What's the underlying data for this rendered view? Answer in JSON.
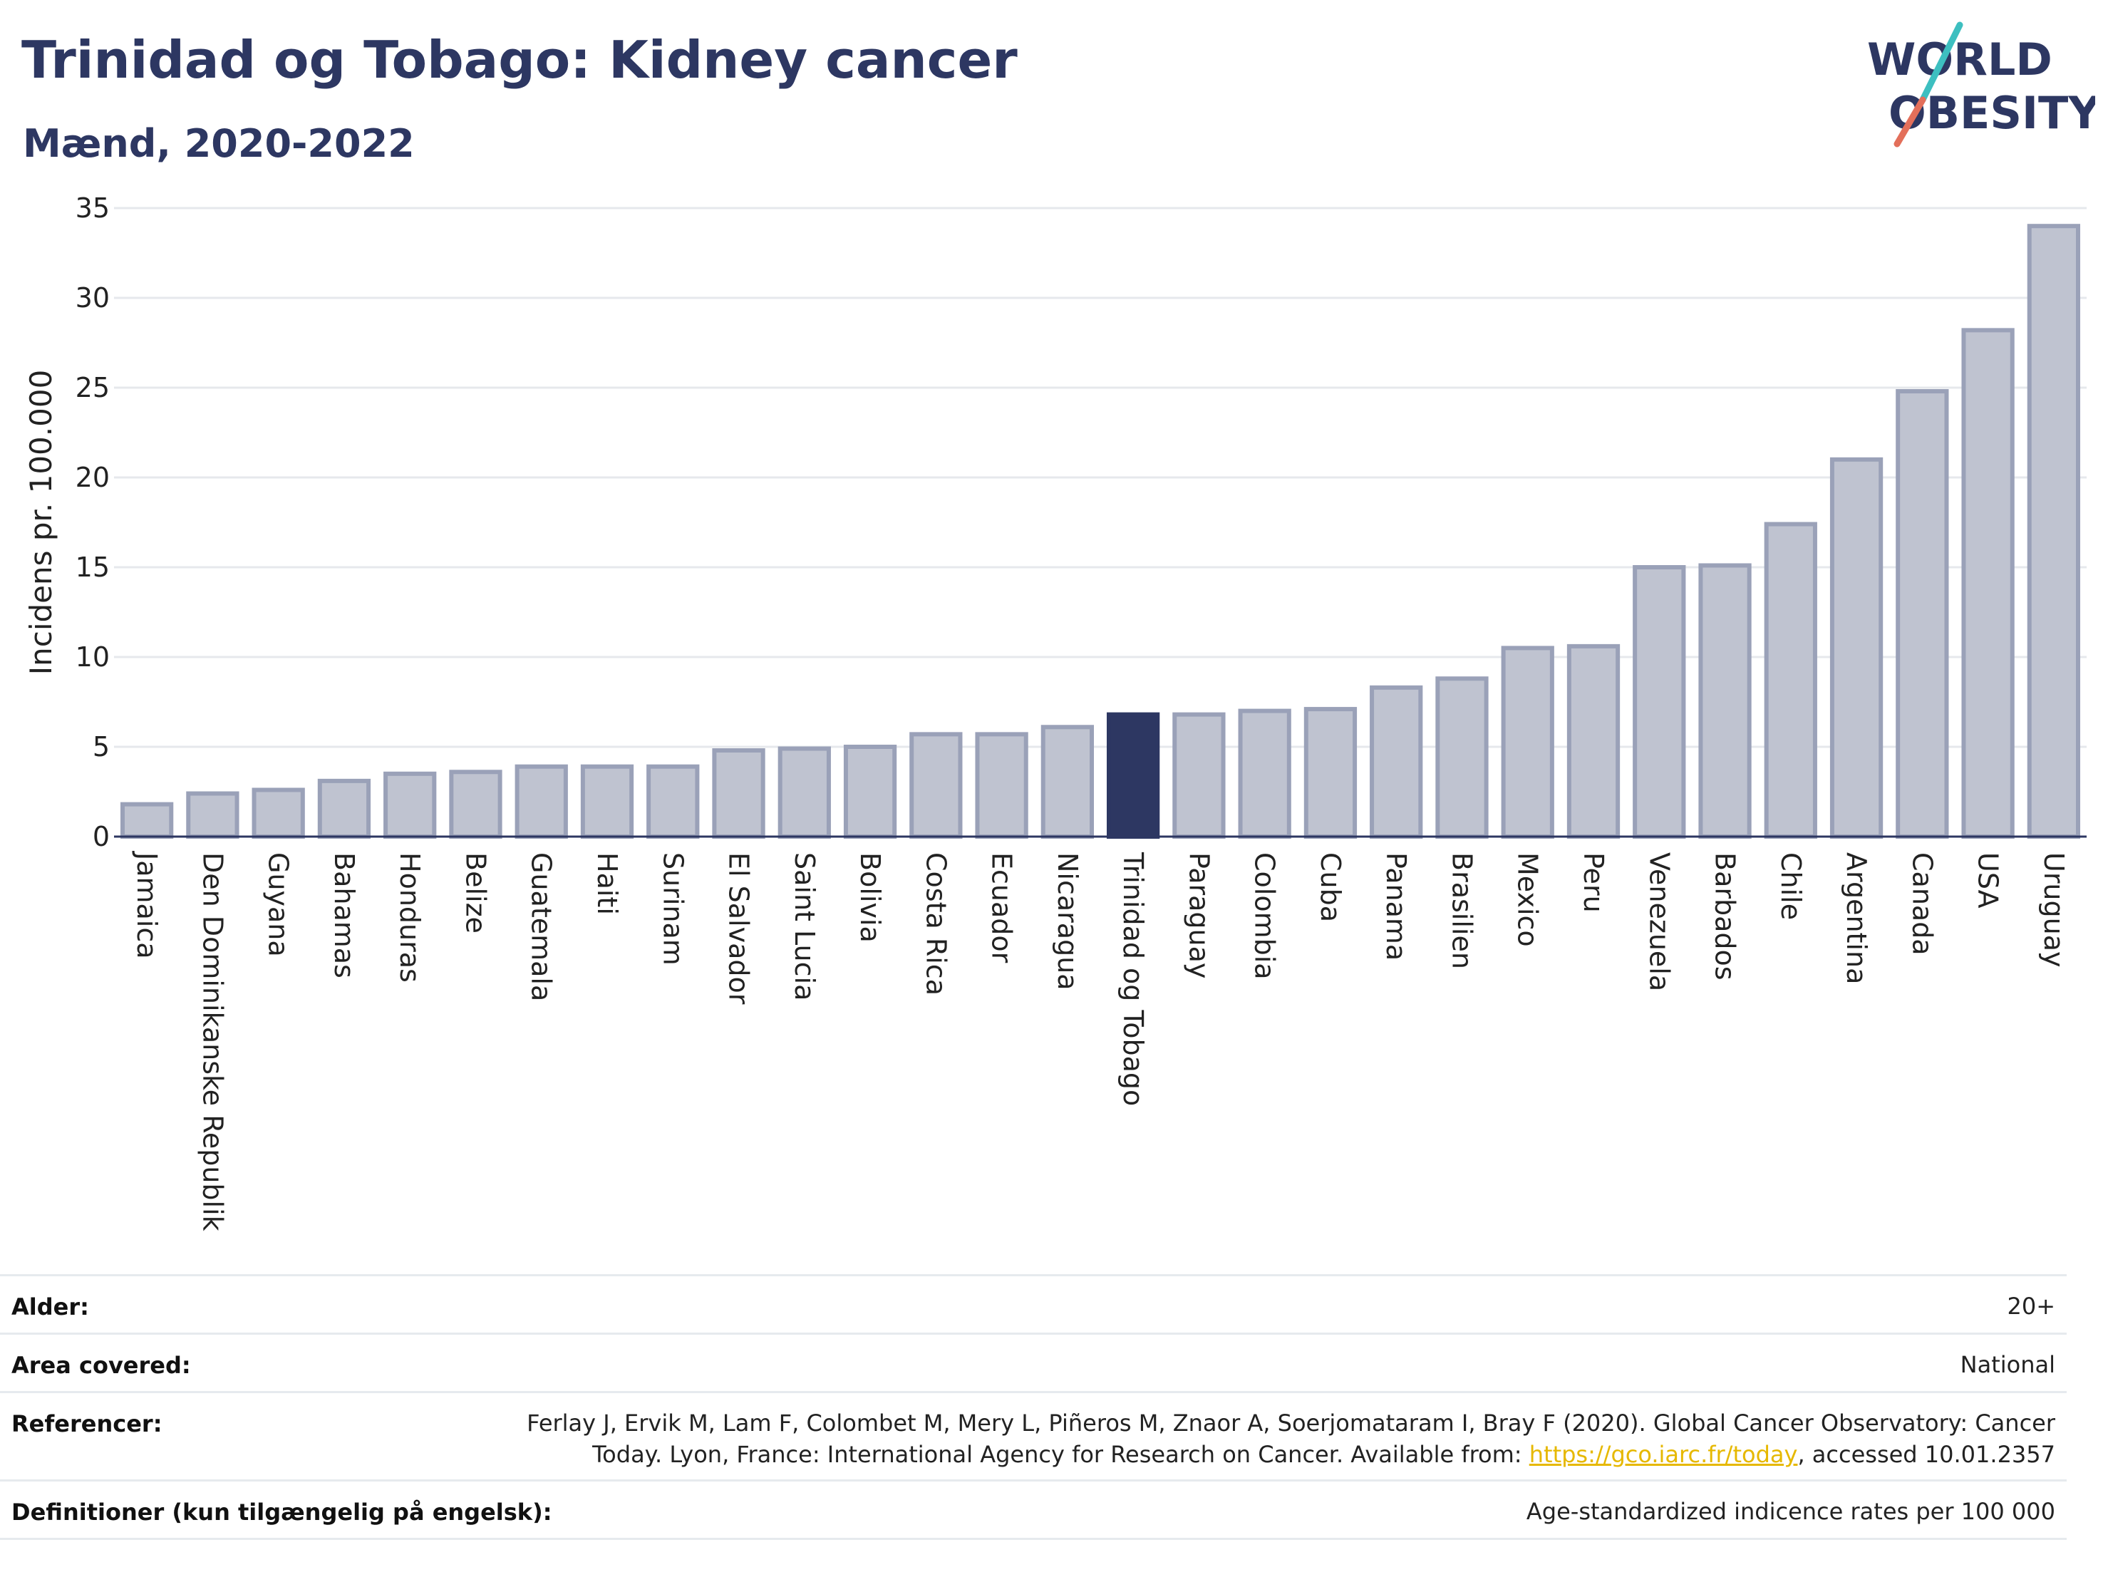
{
  "header": {
    "title": "Trinidad og Tobago: Kidney cancer",
    "subtitle": "Mænd, 2020-2022"
  },
  "logo": {
    "line1": "WORLD",
    "line2": "OBESITY"
  },
  "colors": {
    "bar": "#bfc3d0",
    "bar_stroke": "#9aa1b8",
    "highlight": "#2d3762",
    "text": "#2d3762",
    "grid": "#e6e8ec"
  },
  "chart_data": {
    "type": "bar",
    "title": "Trinidad og Tobago: Kidney cancer",
    "subtitle": "Mænd, 2020-2022",
    "xlabel": "",
    "ylabel": "Incidens pr. 100.000",
    "ylim": [
      0,
      35
    ],
    "yticks": [
      0,
      5,
      10,
      15,
      20,
      25,
      30,
      35
    ],
    "grid": true,
    "highlight": "Trinidad og Tobago",
    "categories": [
      "Jamaica",
      "Den Dominikanske Republik",
      "Guyana",
      "Bahamas",
      "Honduras",
      "Belize",
      "Guatemala",
      "Haiti",
      "Surinam",
      "El Salvador",
      "Saint Lucia",
      "Bolivia",
      "Costa Rica",
      "Ecuador",
      "Nicaragua",
      "Trinidad og Tobago",
      "Paraguay",
      "Colombia",
      "Cuba",
      "Panama",
      "Brasilien",
      "Mexico",
      "Peru",
      "Venezuela",
      "Barbados",
      "Chile",
      "Argentina",
      "Canada",
      "USA",
      "Uruguay"
    ],
    "values": [
      1.8,
      2.4,
      2.6,
      3.1,
      3.5,
      3.6,
      3.9,
      3.9,
      3.9,
      4.8,
      4.9,
      5.0,
      5.7,
      5.7,
      6.1,
      6.8,
      6.8,
      7.0,
      7.1,
      8.3,
      8.8,
      10.5,
      10.6,
      15.0,
      15.1,
      17.4,
      21.0,
      24.8,
      28.2,
      34.0
    ]
  },
  "meta": {
    "rows": [
      {
        "label": "Alder:",
        "value": "20+"
      },
      {
        "label": "Area covered:",
        "value": "National"
      },
      {
        "label": "Referencer:",
        "value_line1": "Ferlay J, Ervik M, Lam F, Colombet M, Mery L, Piñeros M, Znaor A, Soerjomataram I, Bray F (2020). Global Cancer Observatory: Cancer",
        "value_line2_pre": "Today. Lyon, France: International Agency for Research on Cancer. Available from: ",
        "link": "https://gco.iarc.fr/today",
        "value_line2_post": ", accessed 10.01.2357"
      },
      {
        "label": "Definitioner (kun tilgængelig på engelsk):",
        "value": "Age-standardized indicence rates per 100 000"
      }
    ]
  }
}
